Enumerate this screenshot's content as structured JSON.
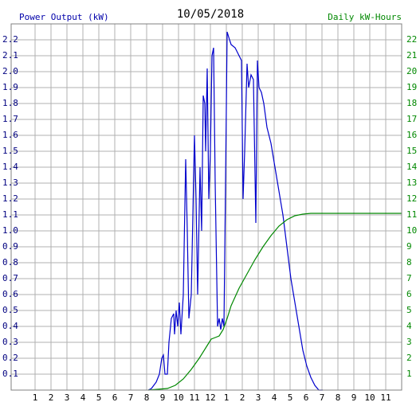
{
  "chart_data": {
    "type": "line",
    "title": "10/05/2018",
    "ylabel": "Power Output (kW)",
    "y2label": "Daily kW-Hours",
    "xlim": [
      -0.5,
      24
    ],
    "ylim": [
      0,
      2.3
    ],
    "y2lim": [
      0,
      23
    ],
    "grid": true,
    "xticks": [
      1,
      2,
      3,
      4,
      5,
      6,
      7,
      8,
      9,
      10,
      11,
      12,
      {
        "value": 13,
        "label": "1"
      },
      {
        "value": 14,
        "label": "2"
      },
      {
        "value": 15,
        "label": "3"
      },
      {
        "value": 16,
        "label": "4"
      },
      {
        "value": 17,
        "label": "5"
      },
      {
        "value": 18,
        "label": "6"
      },
      {
        "value": 19,
        "label": "7"
      },
      {
        "value": 20,
        "label": "8"
      },
      {
        "value": 21,
        "label": "9"
      },
      {
        "value": 22,
        "label": "10"
      },
      {
        "value": 23,
        "label": "11"
      }
    ],
    "yticks": [
      0.1,
      0.2,
      0.3,
      0.4,
      0.5,
      0.6,
      0.7,
      0.8,
      0.9,
      {
        "value": 1.0,
        "label": "1.0"
      },
      1.1,
      1.2,
      1.3,
      1.4,
      1.5,
      1.6,
      1.7,
      1.8,
      1.9,
      {
        "value": 2.0,
        "label": "2.0"
      },
      2.1,
      2.2
    ],
    "y2ticks": [
      1,
      2,
      3,
      4,
      5,
      6,
      7,
      8,
      9,
      10,
      11,
      12,
      13,
      14,
      15,
      16,
      17,
      18,
      19,
      20,
      21,
      22
    ],
    "series": [
      {
        "name": "Power Output (kW)",
        "color": "#0000cc",
        "x": [
          8.1,
          8.3,
          8.6,
          8.8,
          8.95,
          9.05,
          9.15,
          9.3,
          9.4,
          9.55,
          9.7,
          9.75,
          9.85,
          9.95,
          10.05,
          10.15,
          10.3,
          10.45,
          10.55,
          10.65,
          10.8,
          11.0,
          11.1,
          11.2,
          11.35,
          11.45,
          11.55,
          11.65,
          11.7,
          11.8,
          11.9,
          12.0,
          12.1,
          12.2,
          12.3,
          12.45,
          12.55,
          12.65,
          12.75,
          12.85,
          12.95,
          13.05,
          13.2,
          13.3,
          13.55,
          13.8,
          13.95,
          14.05,
          14.15,
          14.3,
          14.4,
          14.55,
          14.7,
          14.85,
          14.95,
          15.05,
          15.2,
          15.35,
          15.55,
          15.8,
          16.05,
          16.3,
          16.55,
          16.8,
          17.05,
          17.3,
          17.55,
          17.8,
          18.05,
          18.3,
          18.55,
          18.8,
          19.05
        ],
        "values": [
          0,
          0.01,
          0.05,
          0.1,
          0.2,
          0.22,
          0.1,
          0.1,
          0.3,
          0.45,
          0.48,
          0.35,
          0.5,
          0.4,
          0.55,
          0.35,
          0.6,
          1.45,
          1.0,
          0.45,
          0.6,
          1.6,
          1.2,
          0.6,
          1.4,
          1.0,
          1.85,
          1.8,
          1.5,
          2.02,
          1.2,
          1.5,
          2.1,
          2.15,
          1.3,
          0.4,
          0.45,
          0.38,
          0.45,
          0.4,
          1.3,
          2.25,
          2.2,
          2.17,
          2.15,
          2.1,
          2.07,
          1.2,
          1.5,
          2.05,
          1.9,
          1.98,
          1.95,
          1.05,
          2.07,
          1.9,
          1.87,
          1.8,
          1.65,
          1.55,
          1.4,
          1.25,
          1.1,
          0.9,
          0.7,
          0.55,
          0.4,
          0.25,
          0.15,
          0.08,
          0.03,
          0,
          0
        ]
      },
      {
        "name": "Daily kW-Hours",
        "color": "#008800",
        "axis": "y2",
        "x": [
          8.1,
          9.3,
          9.8,
          10.3,
          10.8,
          11.3,
          11.8,
          12.05,
          12.3,
          12.55,
          12.8,
          13.05,
          13.3,
          13.8,
          14.3,
          14.8,
          15.3,
          15.8,
          16.3,
          16.8,
          17.3,
          17.8,
          18.3,
          18.8,
          24
        ],
        "values": [
          0,
          0.1,
          0.3,
          0.7,
          1.3,
          2.0,
          2.8,
          3.2,
          3.3,
          3.4,
          3.8,
          4.5,
          5.3,
          6.4,
          7.3,
          8.2,
          9.0,
          9.7,
          10.3,
          10.7,
          10.95,
          11.05,
          11.1,
          11.1,
          11.1
        ]
      }
    ]
  }
}
